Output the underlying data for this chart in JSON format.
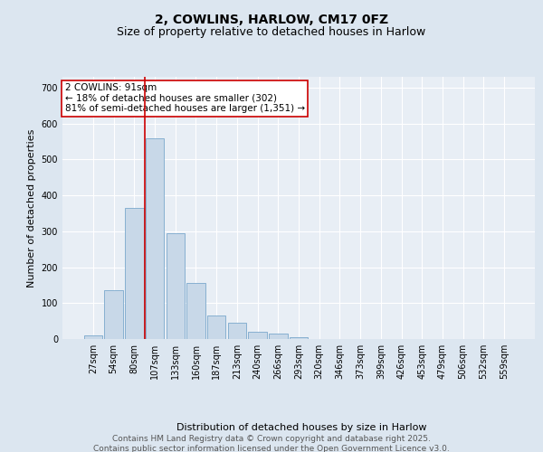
{
  "title1": "2, COWLINS, HARLOW, CM17 0FZ",
  "title2": "Size of property relative to detached houses in Harlow",
  "xlabel": "Distribution of detached houses by size in Harlow",
  "ylabel": "Number of detached properties",
  "categories": [
    "27sqm",
    "54sqm",
    "80sqm",
    "107sqm",
    "133sqm",
    "160sqm",
    "187sqm",
    "213sqm",
    "240sqm",
    "266sqm",
    "293sqm",
    "320sqm",
    "346sqm",
    "373sqm",
    "399sqm",
    "426sqm",
    "453sqm",
    "479sqm",
    "506sqm",
    "532sqm",
    "559sqm"
  ],
  "values": [
    10,
    135,
    365,
    560,
    295,
    155,
    65,
    45,
    20,
    15,
    5,
    0,
    0,
    0,
    0,
    0,
    0,
    0,
    0,
    0,
    0
  ],
  "bar_color": "#c8d8e8",
  "bar_edge_color": "#7aa8cc",
  "vline_x_index": 2.5,
  "vline_color": "#cc0000",
  "annotation_text": "2 COWLINS: 91sqm\n← 18% of detached houses are smaller (302)\n81% of semi-detached houses are larger (1,351) →",
  "annotation_box_color": "#ffffff",
  "annotation_box_edge": "#cc0000",
  "yticks": [
    0,
    100,
    200,
    300,
    400,
    500,
    600,
    700
  ],
  "ylim": [
    0,
    730
  ],
  "bg_color": "#dce6f0",
  "plot_bg_color": "#e8eef5",
  "footer": "Contains HM Land Registry data © Crown copyright and database right 2025.\nContains public sector information licensed under the Open Government Licence v3.0.",
  "title1_fontsize": 10,
  "title2_fontsize": 9,
  "xlabel_fontsize": 8,
  "ylabel_fontsize": 8,
  "tick_fontsize": 7,
  "annotation_fontsize": 7.5,
  "footer_fontsize": 6.5
}
